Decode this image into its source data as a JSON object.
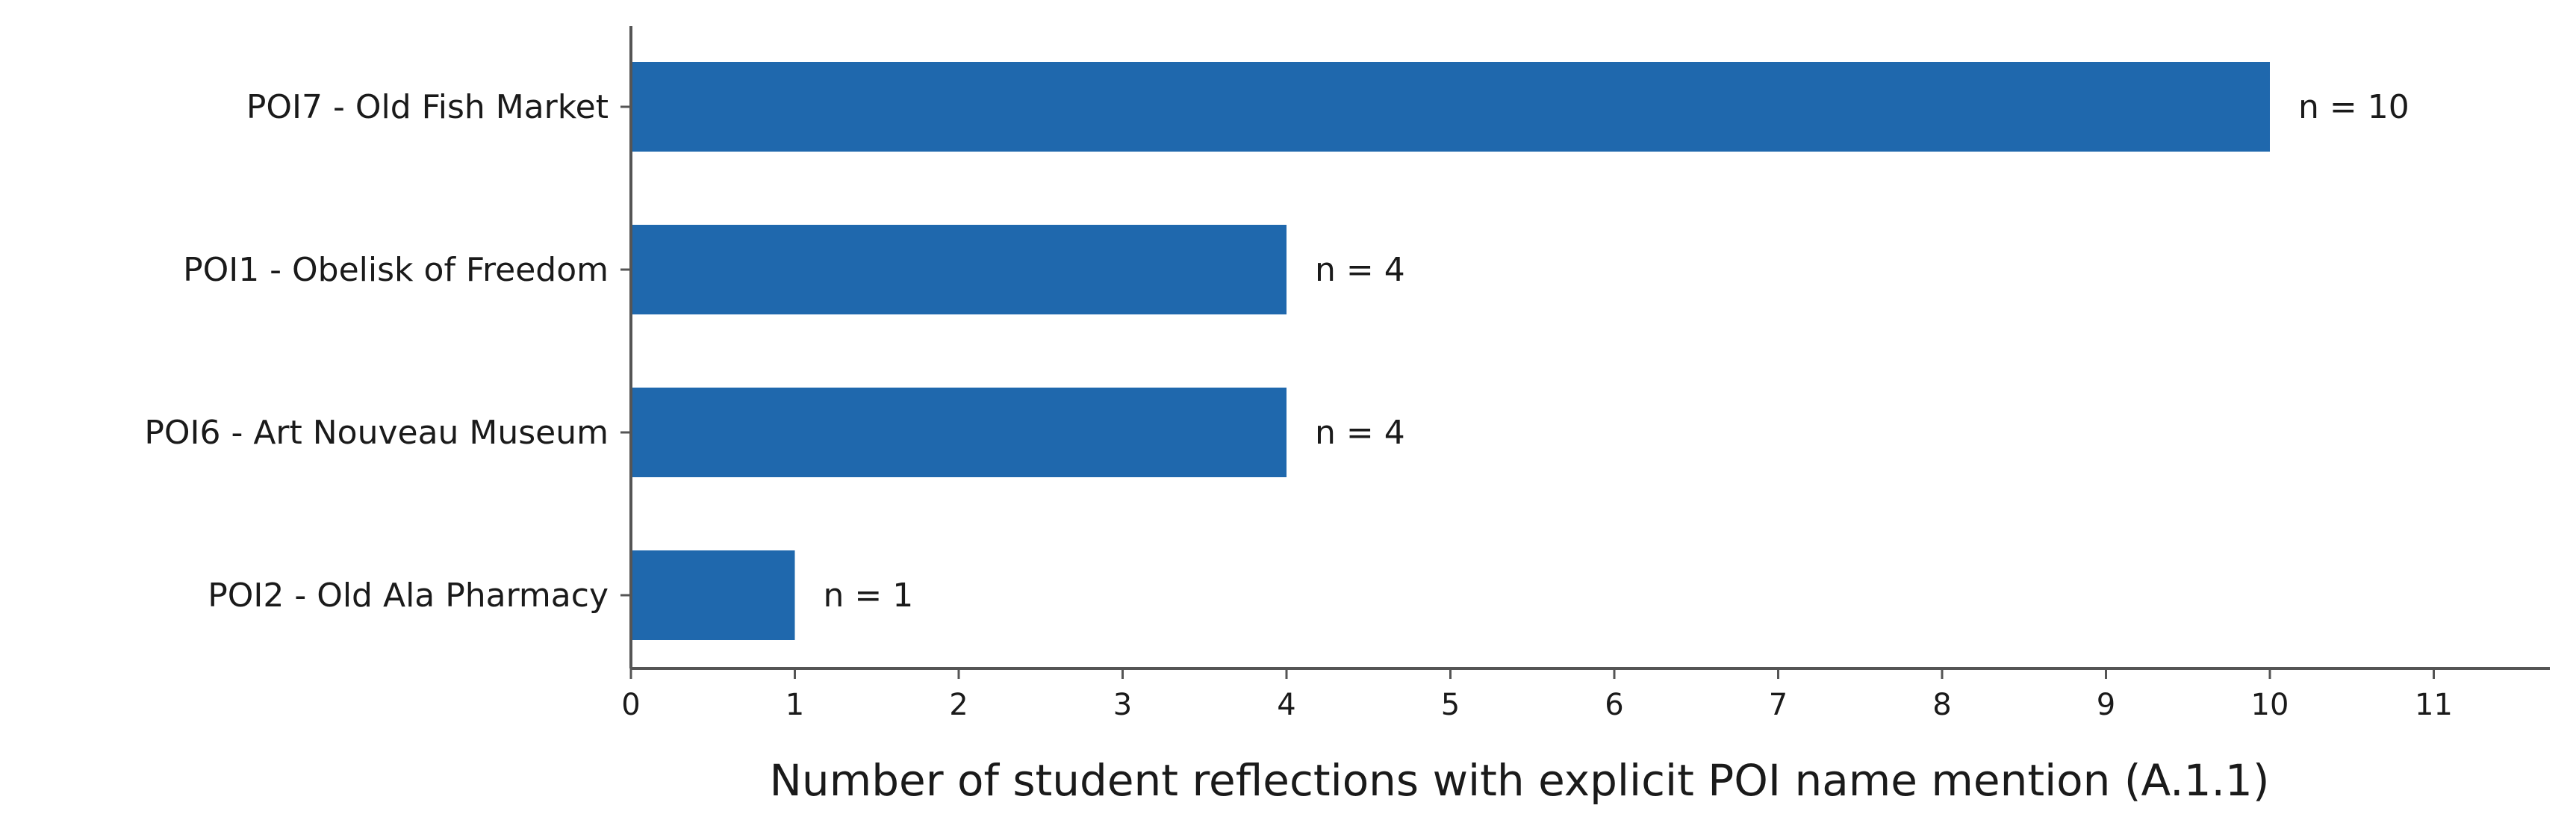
{
  "chart_data": {
    "type": "bar",
    "orientation": "horizontal",
    "categories": [
      "POI7 - Old Fish Market",
      "POI1 - Obelisk of Freedom",
      "POI6 - Art Nouveau Museum",
      "POI2 - Old Ala Pharmacy"
    ],
    "values": [
      10,
      4,
      4,
      1
    ],
    "data_labels": [
      "n = 10",
      "n = 4",
      "n = 4",
      "n = 1"
    ],
    "title": "",
    "xlabel": "Number of student reflections with explicit POI name mention (A.1.1)",
    "ylabel": "",
    "xlim": [
      0,
      11.6
    ],
    "xticks": [
      0,
      1,
      2,
      3,
      4,
      5,
      6,
      7,
      8,
      9,
      10,
      11
    ],
    "grid": false,
    "legend": "none",
    "bar_color": "#1f68ad",
    "axis_color": "#555555"
  }
}
